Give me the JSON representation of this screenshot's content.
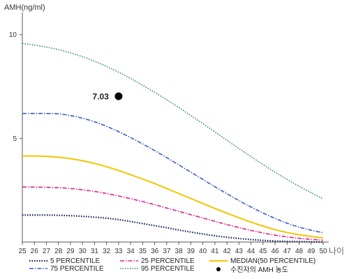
{
  "chart_data": {
    "type": "line",
    "ylabel": "AMH(ng/ml)",
    "x_unit_label": "나이",
    "xlim": [
      25,
      50
    ],
    "ylim": [
      0,
      11
    ],
    "x": [
      25,
      26,
      27,
      28,
      29,
      30,
      31,
      32,
      33,
      34,
      35,
      36,
      37,
      38,
      39,
      40,
      41,
      42,
      43,
      44,
      45,
      46,
      47,
      48,
      49,
      50
    ],
    "x_ticks": [
      "25",
      "26",
      "27",
      "28",
      "29",
      "30",
      "31",
      "32",
      "33",
      "34",
      "35",
      "36",
      "37",
      "38",
      "39",
      "40",
      "41",
      "42",
      "43",
      "44",
      "45",
      "46",
      "47",
      "48",
      "49",
      "50"
    ],
    "y_ticks": [
      {
        "value": 5,
        "label": "5"
      },
      {
        "value": 10,
        "label": "10"
      }
    ],
    "grid": false,
    "legend_position": "bottom",
    "series": [
      {
        "name": "5 PERCENTILE",
        "key": "p5",
        "color": "#0a1a5a",
        "dash": "1.5,2",
        "width": 2.2,
        "values": [
          1.3,
          1.3,
          1.3,
          1.29,
          1.27,
          1.24,
          1.2,
          1.15,
          1.08,
          0.99,
          0.89,
          0.79,
          0.69,
          0.58,
          0.48,
          0.39,
          0.3,
          0.23,
          0.17,
          0.12,
          0.08,
          0.05,
          0.03,
          0.02,
          0.01,
          0.0
        ]
      },
      {
        "name": "25 PERCENTILE",
        "key": "p25",
        "color": "#e0208a",
        "dash": "6,2,1.5,2",
        "width": 1.6,
        "values": [
          2.65,
          2.65,
          2.64,
          2.62,
          2.58,
          2.52,
          2.44,
          2.34,
          2.22,
          2.09,
          1.95,
          1.8,
          1.64,
          1.48,
          1.32,
          1.16,
          1.0,
          0.84,
          0.7,
          0.56,
          0.44,
          0.33,
          0.25,
          0.18,
          0.13,
          0.09
        ]
      },
      {
        "name": "MEDIAN(50 PERCENTILE)",
        "key": "p50",
        "color": "#f2c500",
        "dash": "",
        "width": 2,
        "values": [
          4.15,
          4.15,
          4.13,
          4.09,
          4.02,
          3.92,
          3.79,
          3.63,
          3.45,
          3.25,
          3.04,
          2.82,
          2.58,
          2.34,
          2.1,
          1.86,
          1.62,
          1.39,
          1.17,
          0.96,
          0.77,
          0.6,
          0.46,
          0.35,
          0.27,
          0.2
        ]
      },
      {
        "name": "75 PERCENTILE",
        "key": "p75",
        "color": "#3a5cc8",
        "dash": "6,2,1.5,2",
        "width": 1.6,
        "values": [
          6.2,
          6.2,
          6.2,
          6.18,
          6.1,
          5.97,
          5.8,
          5.58,
          5.32,
          5.04,
          4.73,
          4.41,
          4.07,
          3.72,
          3.37,
          3.02,
          2.67,
          2.33,
          2.0,
          1.69,
          1.4,
          1.14,
          0.91,
          0.72,
          0.57,
          0.45
        ]
      },
      {
        "name": "95 PERCENTILE",
        "key": "p95",
        "color": "#2e8b57",
        "dash": "1.5,2",
        "width": 1.6,
        "values": [
          9.58,
          9.5,
          9.4,
          9.28,
          9.12,
          8.94,
          8.72,
          8.47,
          8.19,
          7.89,
          7.56,
          7.22,
          6.86,
          6.49,
          6.1,
          5.71,
          5.31,
          4.91,
          4.51,
          4.12,
          3.74,
          3.37,
          3.02,
          2.69,
          2.38,
          2.08
        ]
      }
    ],
    "points": [
      {
        "name": "수진자의 AMH 농도",
        "x": 33,
        "y": 7.03,
        "label": "7.03",
        "color": "#000000"
      }
    ]
  }
}
